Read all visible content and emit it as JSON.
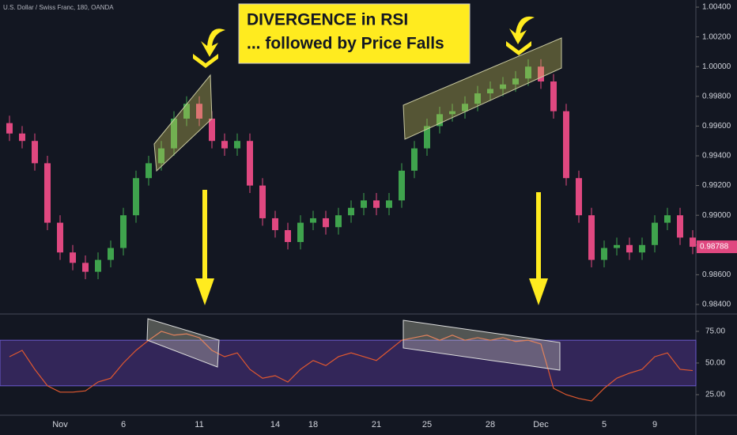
{
  "chart_data": [
    {
      "type": "candlestick",
      "title": "U.S. Dollar / Swiss Franc, 180, OANDA",
      "annotations": [
        "DIVERGENCE in RSI",
        "... followed by Price Falls"
      ],
      "up_color": "#3fa34d",
      "down_color": "#e04880",
      "open": [
        0.9962,
        0.9955,
        0.995,
        0.9935,
        0.9895,
        0.9875,
        0.9868,
        0.9862,
        0.987,
        0.9878,
        0.99,
        0.9925,
        0.9935,
        0.9945,
        0.9965,
        0.9975,
        0.9965,
        0.995,
        0.9945,
        0.995,
        0.992,
        0.9898,
        0.989,
        0.9882,
        0.9895,
        0.9898,
        0.9892,
        0.99,
        0.9905,
        0.991,
        0.9905,
        0.991,
        0.993,
        0.9945,
        0.996,
        0.9968,
        0.997,
        0.9975,
        0.9982,
        0.9985,
        0.9988,
        0.9992,
        1.0,
        0.999,
        0.997,
        0.9925,
        0.99,
        0.987,
        0.9878,
        0.988,
        0.9875,
        0.988,
        0.9895,
        0.99,
        0.9885
      ],
      "high": [
        0.9967,
        0.996,
        0.9955,
        0.994,
        0.99,
        0.988,
        0.9873,
        0.9875,
        0.9883,
        0.9905,
        0.993,
        0.994,
        0.995,
        0.997,
        0.998,
        0.998,
        0.997,
        0.9955,
        0.9955,
        0.9955,
        0.9925,
        0.9903,
        0.9895,
        0.99,
        0.9903,
        0.9903,
        0.9905,
        0.991,
        0.9915,
        0.9915,
        0.9915,
        0.9935,
        0.995,
        0.9965,
        0.9973,
        0.9975,
        0.998,
        0.9987,
        0.999,
        0.9993,
        0.9997,
        1.0005,
        1.0005,
        0.9995,
        0.9975,
        0.993,
        0.9905,
        0.9883,
        0.9885,
        0.9885,
        0.9885,
        0.99,
        0.9905,
        0.9905,
        0.989
      ],
      "low": [
        0.995,
        0.9945,
        0.993,
        0.989,
        0.987,
        0.9863,
        0.9857,
        0.9857,
        0.9865,
        0.9873,
        0.9895,
        0.992,
        0.993,
        0.994,
        0.996,
        0.996,
        0.9945,
        0.994,
        0.994,
        0.9915,
        0.9893,
        0.9885,
        0.9877,
        0.9877,
        0.989,
        0.9887,
        0.9887,
        0.9895,
        0.99,
        0.99,
        0.99,
        0.9905,
        0.9925,
        0.994,
        0.9955,
        0.9963,
        0.9965,
        0.997,
        0.9977,
        0.998,
        0.9983,
        0.9987,
        0.9985,
        0.9965,
        0.992,
        0.9895,
        0.9865,
        0.9865,
        0.9873,
        0.987,
        0.987,
        0.9875,
        0.989,
        0.988,
        0.98738
      ],
      "close": [
        0.9955,
        0.995,
        0.9935,
        0.9895,
        0.9875,
        0.9868,
        0.9862,
        0.987,
        0.9878,
        0.99,
        0.9925,
        0.9935,
        0.9945,
        0.9965,
        0.9975,
        0.9965,
        0.995,
        0.9945,
        0.995,
        0.992,
        0.9898,
        0.989,
        0.9882,
        0.9895,
        0.9898,
        0.9892,
        0.99,
        0.9905,
        0.991,
        0.9905,
        0.991,
        0.993,
        0.9945,
        0.996,
        0.9968,
        0.997,
        0.9975,
        0.9982,
        0.9985,
        0.9988,
        0.9992,
        1.0,
        0.999,
        0.997,
        0.9925,
        0.99,
        0.987,
        0.9878,
        0.988,
        0.9875,
        0.988,
        0.9895,
        0.99,
        0.9885,
        0.98788
      ],
      "last_price": {
        "value": 0.98788,
        "label": "0.98788"
      },
      "ylim": [
        0.98336,
        1.00448
      ],
      "yticks": [
        {
          "value": 0.984,
          "label": "0.98400"
        },
        {
          "value": 0.986,
          "label": "0.98600"
        },
        {
          "value": 0.988,
          "label": "0.98800"
        },
        {
          "value": 0.99,
          "label": "0.99000"
        },
        {
          "value": 0.992,
          "label": "0.99200"
        },
        {
          "value": 0.994,
          "label": "0.99400"
        },
        {
          "value": 0.996,
          "label": "0.99600"
        },
        {
          "value": 0.998,
          "label": "0.99800"
        },
        {
          "value": 1.0,
          "label": "1.00000"
        },
        {
          "value": 1.002,
          "label": "1.00200"
        },
        {
          "value": 1.004,
          "label": "1.00400"
        }
      ]
    },
    {
      "type": "line",
      "color": "#e0582f",
      "band": [
        32,
        68
      ],
      "band_color": "#5b3a9e",
      "categories": [
        null,
        null,
        null,
        null,
        "Nov",
        null,
        null,
        null,
        null,
        "6",
        null,
        null,
        null,
        null,
        null,
        "11",
        null,
        null,
        null,
        null,
        null,
        "14",
        null,
        null,
        "18",
        null,
        null,
        null,
        null,
        "21",
        null,
        null,
        null,
        "25",
        null,
        null,
        null,
        null,
        "28",
        null,
        null,
        null,
        "Dec",
        null,
        null,
        null,
        null,
        "5",
        null,
        null,
        null,
        "9",
        null,
        null,
        null
      ],
      "values": [
        55,
        60,
        45,
        32,
        27,
        27,
        28,
        35,
        38,
        50,
        60,
        68,
        75,
        72,
        73,
        70,
        60,
        55,
        58,
        45,
        38,
        40,
        35,
        45,
        52,
        48,
        55,
        58,
        55,
        52,
        60,
        68,
        70,
        72,
        68,
        72,
        68,
        70,
        68,
        70,
        67,
        68,
        65,
        30,
        25,
        22,
        20,
        30,
        38,
        42,
        45,
        55,
        58,
        45,
        44
      ],
      "ylim": [
        8.75,
        88.1
      ],
      "yticks": [
        {
          "value": 25,
          "label": "25.00"
        },
        {
          "value": 50,
          "label": "50.00"
        },
        {
          "value": 75,
          "label": "75.00"
        }
      ]
    }
  ]
}
